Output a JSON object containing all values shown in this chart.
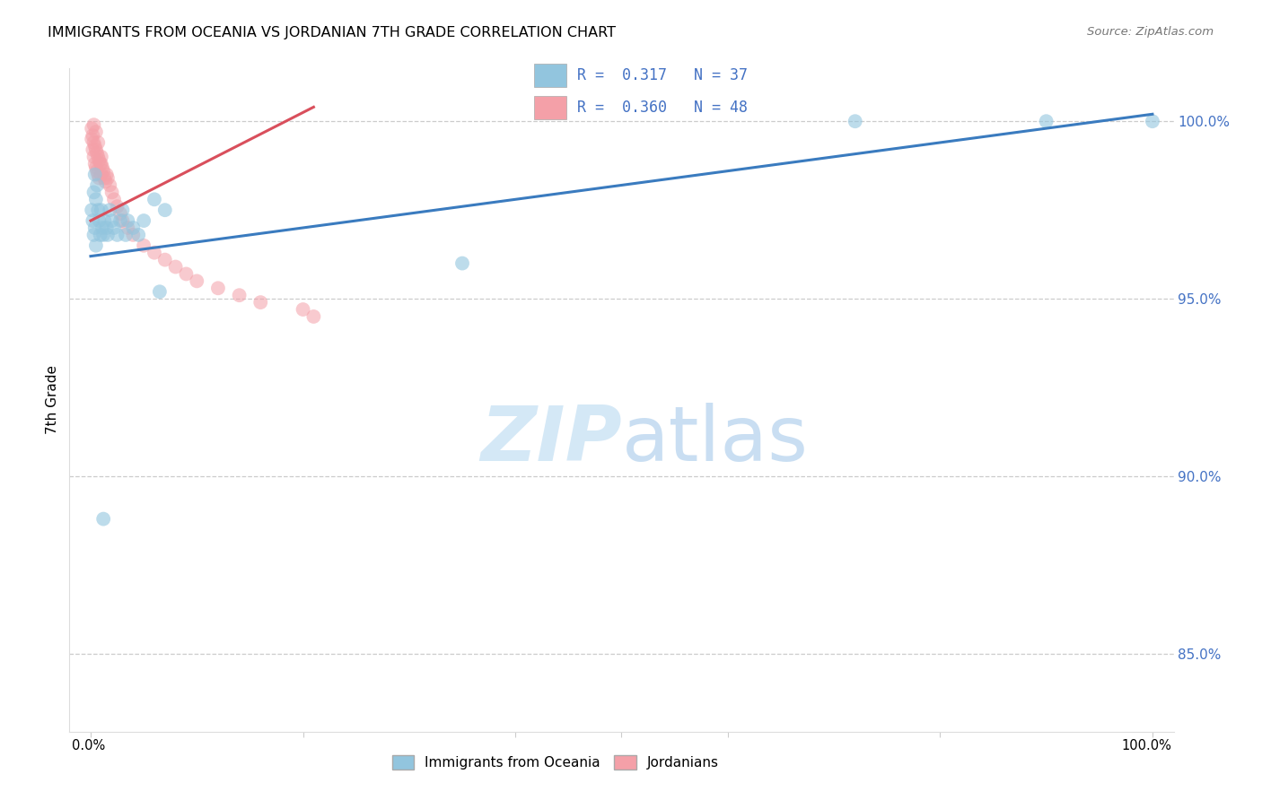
{
  "title": "IMMIGRANTS FROM OCEANIA VS JORDANIAN 7TH GRADE CORRELATION CHART",
  "source": "Source: ZipAtlas.com",
  "ylabel": "7th Grade",
  "ytick_labels": [
    "85.0%",
    "90.0%",
    "95.0%",
    "100.0%"
  ],
  "ytick_values": [
    0.85,
    0.9,
    0.95,
    1.0
  ],
  "legend1_label": "Immigrants from Oceania",
  "legend2_label": "Jordanians",
  "R_blue": "0.317",
  "N_blue": "37",
  "R_pink": "0.360",
  "N_pink": "48",
  "blue_color": "#92c5de",
  "pink_color": "#f4a0a8",
  "blue_line_color": "#3a7bbf",
  "pink_line_color": "#d94f5c",
  "watermark_zip": "ZIP",
  "watermark_atlas": "atlas",
  "blue_scatter_x": [
    0.001,
    0.002,
    0.003,
    0.003,
    0.004,
    0.004,
    0.005,
    0.005,
    0.006,
    0.007,
    0.008,
    0.009,
    0.01,
    0.011,
    0.012,
    0.013,
    0.015,
    0.016,
    0.018,
    0.02,
    0.022,
    0.025,
    0.028,
    0.03,
    0.033,
    0.035,
    0.04,
    0.045,
    0.05,
    0.06,
    0.07,
    0.35,
    0.065,
    0.72,
    0.9,
    1.0,
    0.012
  ],
  "blue_scatter_y": [
    0.975,
    0.972,
    0.98,
    0.968,
    0.985,
    0.97,
    0.978,
    0.965,
    0.982,
    0.975,
    0.972,
    0.968,
    0.975,
    0.97,
    0.968,
    0.972,
    0.97,
    0.968,
    0.975,
    0.972,
    0.97,
    0.968,
    0.972,
    0.975,
    0.968,
    0.972,
    0.97,
    0.968,
    0.972,
    0.978,
    0.975,
    0.96,
    0.952,
    1.0,
    1.0,
    1.0,
    0.888
  ],
  "pink_scatter_x": [
    0.001,
    0.001,
    0.002,
    0.002,
    0.003,
    0.003,
    0.004,
    0.004,
    0.005,
    0.005,
    0.006,
    0.006,
    0.007,
    0.007,
    0.008,
    0.008,
    0.009,
    0.01,
    0.01,
    0.011,
    0.012,
    0.013,
    0.014,
    0.015,
    0.016,
    0.018,
    0.02,
    0.022,
    0.025,
    0.028,
    0.03,
    0.035,
    0.04,
    0.05,
    0.06,
    0.07,
    0.08,
    0.09,
    0.1,
    0.12,
    0.14,
    0.16,
    0.2,
    0.003,
    0.005,
    0.007,
    0.01,
    0.21
  ],
  "pink_scatter_y": [
    0.998,
    0.995,
    0.996,
    0.992,
    0.994,
    0.99,
    0.993,
    0.988,
    0.992,
    0.987,
    0.991,
    0.986,
    0.99,
    0.985,
    0.989,
    0.984,
    0.988,
    0.99,
    0.985,
    0.987,
    0.986,
    0.984,
    0.983,
    0.985,
    0.984,
    0.982,
    0.98,
    0.978,
    0.976,
    0.974,
    0.972,
    0.97,
    0.968,
    0.965,
    0.963,
    0.961,
    0.959,
    0.957,
    0.955,
    0.953,
    0.951,
    0.949,
    0.947,
    0.999,
    0.997,
    0.994,
    0.988,
    0.945
  ],
  "xlim": [
    0.0,
    1.0
  ],
  "ylim": [
    0.828,
    1.015
  ]
}
